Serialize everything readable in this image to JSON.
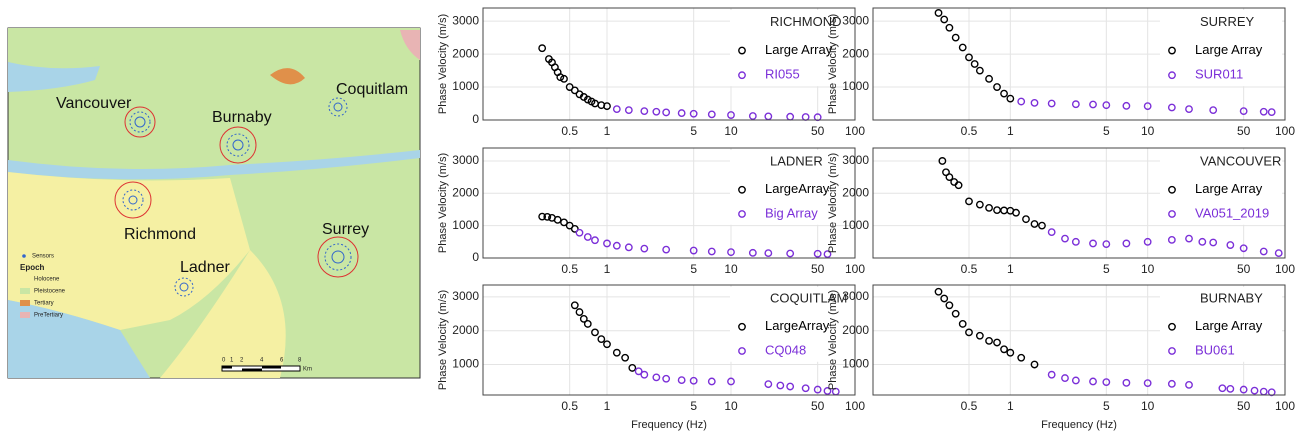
{
  "map": {
    "cities": [
      "Vancouver",
      "Burnaby",
      "Coquitlam",
      "Richmond",
      "Surrey",
      "Ladner"
    ],
    "legend": {
      "sensors": "Sensors",
      "title": "Epoch",
      "items": [
        "Holocene",
        "Pleistocene",
        "Tertiary",
        "PreTertiary"
      ]
    },
    "scale": {
      "labels": [
        "0",
        "1",
        "2",
        "4",
        "6",
        "8"
      ],
      "unit": "Km"
    }
  },
  "chart_data": [
    {
      "type": "scatter",
      "title": "RICHMOND",
      "y_label": "Phase Velocity (m/s)",
      "xscale": "log",
      "grid": true,
      "xlim": [
        0.1,
        100
      ],
      "xticks": [
        0.5,
        1,
        5,
        10,
        50,
        100
      ],
      "ylim": [
        0,
        3400
      ],
      "yticks": [
        0,
        1000,
        2000,
        3000
      ],
      "series": [
        {
          "name": "Large Array",
          "color": "#000000",
          "x": [
            0.3,
            0.34,
            0.36,
            0.38,
            0.4,
            0.42,
            0.45,
            0.5,
            0.55,
            0.6,
            0.65,
            0.7,
            0.75,
            0.8,
            0.9,
            1.0
          ],
          "values": [
            2180,
            1850,
            1750,
            1600,
            1450,
            1300,
            1250,
            1000,
            900,
            780,
            700,
            620,
            560,
            500,
            450,
            420
          ]
        },
        {
          "name": "RI055",
          "color": "#7b2fd8",
          "x": [
            1.2,
            1.5,
            2,
            2.5,
            3,
            4,
            5,
            7,
            10,
            15,
            20,
            30,
            40,
            50
          ],
          "values": [
            330,
            300,
            270,
            250,
            230,
            210,
            190,
            170,
            150,
            120,
            110,
            100,
            90,
            85
          ]
        }
      ]
    },
    {
      "type": "scatter",
      "title": "SURREY",
      "y_label": "Phase Velocity (m/s)",
      "xscale": "log",
      "grid": true,
      "xlim": [
        0.1,
        100
      ],
      "xticks": [
        0.5,
        1,
        5,
        10,
        50,
        100
      ],
      "ylim": [
        0,
        3400
      ],
      "yticks": [
        1000,
        2000,
        3000
      ],
      "series": [
        {
          "name": "Large Array",
          "color": "#000000",
          "x": [
            0.3,
            0.33,
            0.36,
            0.4,
            0.45,
            0.5,
            0.55,
            0.6,
            0.7,
            0.8,
            0.9,
            1.0
          ],
          "values": [
            3250,
            3050,
            2800,
            2500,
            2200,
            1900,
            1700,
            1500,
            1250,
            1000,
            800,
            650
          ]
        },
        {
          "name": "SUR011",
          "color": "#7b2fd8",
          "x": [
            1.2,
            1.5,
            2,
            3,
            4,
            5,
            7,
            10,
            15,
            20,
            30,
            50,
            70,
            80
          ],
          "values": [
            560,
            520,
            500,
            480,
            470,
            450,
            430,
            420,
            380,
            330,
            300,
            270,
            250,
            240
          ]
        }
      ]
    },
    {
      "type": "scatter",
      "title": "LADNER",
      "y_label": "Phase Velocity (m/s)",
      "xscale": "log",
      "grid": true,
      "xlim": [
        0.1,
        100
      ],
      "xticks": [
        0.5,
        1,
        5,
        10,
        50,
        100
      ],
      "ylim": [
        0,
        3400
      ],
      "yticks": [
        0,
        1000,
        2000,
        3000
      ],
      "series": [
        {
          "name": "LargeArray",
          "color": "#000000",
          "x": [
            0.3,
            0.33,
            0.36,
            0.4,
            0.45,
            0.5,
            0.55
          ],
          "values": [
            1280,
            1270,
            1240,
            1180,
            1100,
            1000,
            900
          ]
        },
        {
          "name": "Big Array",
          "color": "#7b2fd8",
          "x": [
            0.6,
            0.7,
            0.8,
            1,
            1.2,
            1.5,
            2,
            3,
            5,
            7,
            10,
            15,
            20,
            30,
            50,
            60
          ],
          "values": [
            780,
            650,
            550,
            450,
            380,
            330,
            290,
            260,
            230,
            200,
            180,
            160,
            150,
            140,
            130,
            120
          ]
        }
      ]
    },
    {
      "type": "scatter",
      "title": "VANCOUVER",
      "y_label": "Phase Velocity (m/s)",
      "xscale": "log",
      "grid": true,
      "xlim": [
        0.1,
        100
      ],
      "xticks": [
        0.5,
        1,
        5,
        10,
        50,
        100
      ],
      "ylim": [
        0,
        3400
      ],
      "yticks": [
        1000,
        2000,
        3000
      ],
      "series": [
        {
          "name": "Large Array",
          "color": "#000000",
          "x": [
            0.32,
            0.34,
            0.36,
            0.39,
            0.42,
            0.5,
            0.6,
            0.7,
            0.8,
            0.9,
            1.0,
            1.1,
            1.3,
            1.5,
            1.7
          ],
          "values": [
            3000,
            2650,
            2500,
            2350,
            2250,
            1750,
            1650,
            1550,
            1480,
            1470,
            1460,
            1400,
            1200,
            1050,
            1000
          ]
        },
        {
          "name": "VA051_2019",
          "color": "#7b2fd8",
          "x": [
            2,
            2.5,
            3,
            4,
            5,
            7,
            10,
            15,
            20,
            25,
            30,
            40,
            50,
            70,
            90
          ],
          "values": [
            800,
            600,
            500,
            450,
            430,
            450,
            500,
            560,
            600,
            500,
            480,
            400,
            300,
            200,
            150
          ]
        }
      ]
    },
    {
      "type": "scatter",
      "title": "COQUITLAM",
      "y_label": "Phase Velocity (m/s)",
      "x_label": "Frequency (Hz)",
      "xscale": "log",
      "grid": true,
      "xlim": [
        0.1,
        100
      ],
      "xticks": [
        0.5,
        1,
        5,
        10,
        50,
        100
      ],
      "ylim": [
        100,
        3350
      ],
      "yticks": [
        1000,
        2000,
        3000
      ],
      "series": [
        {
          "name": "LargeArray",
          "color": "#000000",
          "x": [
            0.55,
            0.6,
            0.65,
            0.7,
            0.8,
            0.9,
            1.0,
            1.2,
            1.4,
            1.6
          ],
          "values": [
            2750,
            2550,
            2350,
            2200,
            1950,
            1750,
            1600,
            1350,
            1200,
            900
          ]
        },
        {
          "name": "CQ048",
          "color": "#7b2fd8",
          "x": [
            1.8,
            2,
            2.5,
            3,
            4,
            5,
            7,
            10,
            20,
            25,
            30,
            40,
            50,
            60,
            70
          ],
          "values": [
            800,
            700,
            620,
            580,
            540,
            520,
            500,
            500,
            420,
            380,
            350,
            300,
            260,
            220,
            200
          ]
        }
      ]
    },
    {
      "type": "scatter",
      "title": "BURNABY",
      "y_label": "Phase Velocity (m/s)",
      "x_label": "Frequency (Hz)",
      "xscale": "log",
      "grid": true,
      "xlim": [
        0.1,
        100
      ],
      "xticks": [
        0.5,
        1,
        5,
        10,
        50,
        100
      ],
      "ylim": [
        100,
        3350
      ],
      "yticks": [
        1000,
        2000,
        3000
      ],
      "series": [
        {
          "name": "Large Array",
          "color": "#000000",
          "x": [
            0.3,
            0.33,
            0.36,
            0.4,
            0.45,
            0.5,
            0.6,
            0.7,
            0.8,
            0.9,
            1,
            1.2,
            1.5
          ],
          "values": [
            3150,
            2950,
            2750,
            2500,
            2200,
            1950,
            1850,
            1700,
            1650,
            1450,
            1350,
            1200,
            1000
          ]
        },
        {
          "name": "BU061",
          "color": "#7b2fd8",
          "x": [
            2,
            2.5,
            3,
            4,
            5,
            7,
            10,
            15,
            20,
            35,
            40,
            50,
            60,
            70,
            80
          ],
          "values": [
            700,
            600,
            530,
            500,
            480,
            460,
            450,
            430,
            400,
            300,
            280,
            260,
            230,
            200,
            180
          ]
        }
      ]
    }
  ]
}
